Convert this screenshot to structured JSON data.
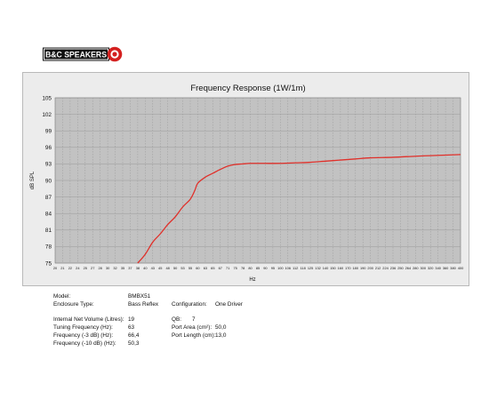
{
  "brand": {
    "logo_text": "B&C SPEAKERS",
    "color": "#d4201f"
  },
  "chart_data": {
    "type": "line",
    "title": "Frequency Response (1W/1m)",
    "xlabel": "Hz",
    "ylabel": "dB SPL",
    "ylim": [
      75,
      105
    ],
    "y_ticks": [
      75,
      78,
      81,
      84,
      87,
      90,
      93,
      96,
      99,
      102,
      105
    ],
    "x_ticks": [
      "20",
      "21",
      "22",
      "24",
      "25",
      "27",
      "28",
      "30",
      "32",
      "35",
      "37",
      "38",
      "40",
      "43",
      "45",
      "48",
      "50",
      "53",
      "55",
      "60",
      "63",
      "65",
      "67",
      "71",
      "75",
      "78",
      "80",
      "85",
      "90",
      "95",
      "100",
      "106",
      "112",
      "118",
      "125",
      "132",
      "140",
      "150",
      "160",
      "170",
      "180",
      "190",
      "200",
      "212",
      "224",
      "236",
      "250",
      "264",
      "280",
      "300",
      "320",
      "340",
      "360",
      "380",
      "400"
    ],
    "grid": true,
    "line_color": "#e0302a",
    "series": [
      {
        "x": [
          38,
          40,
          43,
          45,
          48,
          50,
          53,
          55,
          58,
          60,
          63,
          65,
          67,
          71,
          75,
          78,
          80,
          85,
          90,
          100,
          112,
          125,
          140,
          160,
          180,
          200,
          236,
          280,
          320,
          360,
          400
        ],
        "values": [
          75,
          76.6,
          78.8,
          80.3,
          82.0,
          83.4,
          85.2,
          86.6,
          88.2,
          89.5,
          90.6,
          91.3,
          92.0,
          92.6,
          92.9,
          93.0,
          93.1,
          93.1,
          93.1,
          93.1,
          93.2,
          93.3,
          93.5,
          93.7,
          93.9,
          94.1,
          94.2,
          94.4,
          94.5,
          94.6,
          94.7
        ]
      }
    ]
  },
  "specs": {
    "model": {
      "label": "Model:",
      "value": "BMBX51"
    },
    "enclosure_type": {
      "label": "Enclosure Type:",
      "value": "Bass Reflex"
    },
    "configuration": {
      "label": "Configuration:",
      "value": "One Driver"
    },
    "internal_net_volume": {
      "label": "Internal Net Volume (Litres):",
      "value": "19"
    },
    "qb": {
      "label": "QB:",
      "value": "7"
    },
    "tuning_frequency": {
      "label": "Tuning Frequency (Hz):",
      "value": "63"
    },
    "port_area": {
      "label": "Port Area (cm²):",
      "value": "50,0"
    },
    "frequency_3db": {
      "label": "Frequency (-3 dB) (Hz):",
      "value": "66,4"
    },
    "port_length": {
      "label": "Port Length (cm):",
      "value": "13,0"
    },
    "frequency_10db": {
      "label": "Frequency (-10 dB) (Hz):",
      "value": "50,3"
    }
  }
}
